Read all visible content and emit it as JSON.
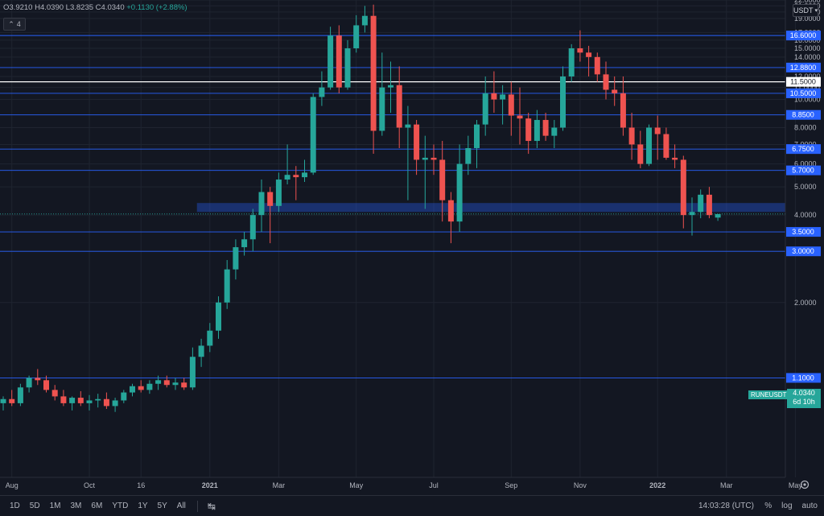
{
  "ohlc": {
    "o_label": "O",
    "o": "3.9210",
    "h_label": "H",
    "h": "4.0390",
    "l_label": "L",
    "l": "3.8235",
    "c_label": "C",
    "c": "4.0340",
    "change": "+0.1130 (+2.88%)"
  },
  "indicator_count": "4",
  "currency": "USDT",
  "symbol_label": "RUNEUSDT",
  "last_price": "4.0340",
  "countdown": "6d 10h",
  "colors": {
    "up": "#26a69a",
    "down": "#ef5350",
    "level": "#2962ff",
    "bg": "#131722",
    "grid": "#1f2430"
  },
  "timeframes": [
    "1D",
    "5D",
    "1M",
    "3M",
    "6M",
    "YTD",
    "1Y",
    "5Y",
    "All"
  ],
  "clock": "14:03:28 (UTC)",
  "right_tools": {
    "percent": "%",
    "log": "log",
    "auto": "auto"
  },
  "chart_data": {
    "type": "candlestick",
    "scale": "log",
    "ylim": [
      0.5,
      22
    ],
    "y_ticks": [
      "2.0000",
      "3.0000",
      "4.0000",
      "5.0000",
      "6.0000",
      "7.0000",
      "8.0000",
      "10.0000",
      "11.0000",
      "12.0000",
      "14.0000",
      "15.0000",
      "16.0000",
      "17.0000",
      "19.0000",
      "20.0000",
      "21.0000",
      "22.0000"
    ],
    "x_ticks": [
      {
        "label": "Aug",
        "i": 1
      },
      {
        "label": "Oct",
        "i": 10
      },
      {
        "label": "16",
        "i": 16
      },
      {
        "label": "2021",
        "i": 24
      },
      {
        "label": "Mar",
        "i": 32
      },
      {
        "label": "May",
        "i": 41
      },
      {
        "label": "Jul",
        "i": 50
      },
      {
        "label": "Sep",
        "i": 59
      },
      {
        "label": "Nov",
        "i": 67
      },
      {
        "label": "2022",
        "i": 76
      },
      {
        "label": "Mar",
        "i": 84
      },
      {
        "label": "May",
        "i": 92
      }
    ],
    "levels": [
      {
        "value": 16.6,
        "label": "16.6000",
        "style": "level"
      },
      {
        "value": 12.88,
        "label": "12.8800",
        "style": "level"
      },
      {
        "value": 11.5,
        "label": "11.5000",
        "style": "white"
      },
      {
        "value": 10.5,
        "label": "10.5000",
        "style": "level"
      },
      {
        "value": 8.85,
        "label": "8.8500",
        "style": "level"
      },
      {
        "value": 6.75,
        "label": "6.7500",
        "style": "level"
      },
      {
        "value": 5.7,
        "label": "5.7000",
        "style": "level"
      },
      {
        "value": 3.5,
        "label": "3.5000",
        "style": "level"
      },
      {
        "value": 3.0,
        "label": "3.0000",
        "style": "level"
      },
      {
        "value": 1.1,
        "label": "1.1000",
        "style": "level"
      }
    ],
    "zone": {
      "from": 4.1,
      "to": 4.4,
      "start_i": 22.5
    },
    "candles": [
      [
        0.9,
        0.95,
        0.85,
        0.93
      ],
      [
        0.93,
        1.0,
        0.88,
        0.9
      ],
      [
        0.9,
        1.05,
        0.88,
        1.02
      ],
      [
        1.02,
        1.12,
        0.98,
        1.1
      ],
      [
        1.1,
        1.18,
        1.04,
        1.08
      ],
      [
        1.08,
        1.12,
        0.98,
        1.0
      ],
      [
        1.0,
        1.04,
        0.92,
        0.95
      ],
      [
        0.95,
        1.0,
        0.88,
        0.9
      ],
      [
        0.9,
        0.95,
        0.85,
        0.94
      ],
      [
        0.94,
        0.99,
        0.88,
        0.9
      ],
      [
        0.9,
        0.96,
        0.85,
        0.92
      ],
      [
        0.92,
        0.97,
        0.87,
        0.93
      ],
      [
        0.93,
        0.98,
        0.86,
        0.88
      ],
      [
        0.88,
        0.94,
        0.84,
        0.92
      ],
      [
        0.92,
        1.0,
        0.9,
        0.98
      ],
      [
        0.98,
        1.05,
        0.95,
        1.03
      ],
      [
        1.03,
        1.08,
        0.98,
        1.0
      ],
      [
        1.0,
        1.08,
        0.97,
        1.05
      ],
      [
        1.05,
        1.12,
        1.0,
        1.08
      ],
      [
        1.08,
        1.12,
        1.02,
        1.04
      ],
      [
        1.04,
        1.1,
        1.0,
        1.06
      ],
      [
        1.06,
        1.1,
        1.0,
        1.02
      ],
      [
        1.02,
        1.4,
        1.0,
        1.3
      ],
      [
        1.3,
        1.5,
        1.2,
        1.42
      ],
      [
        1.42,
        1.7,
        1.35,
        1.6
      ],
      [
        1.6,
        2.1,
        1.5,
        2.0
      ],
      [
        2.0,
        2.8,
        1.9,
        2.6
      ],
      [
        2.6,
        3.3,
        2.4,
        3.1
      ],
      [
        3.1,
        3.5,
        2.9,
        3.3
      ],
      [
        3.3,
        4.2,
        3.0,
        4.0
      ],
      [
        4.0,
        5.3,
        3.5,
        4.8
      ],
      [
        4.8,
        5.0,
        3.2,
        4.3
      ],
      [
        4.3,
        5.6,
        4.1,
        5.3
      ],
      [
        5.3,
        7.0,
        5.1,
        5.5
      ],
      [
        5.5,
        5.9,
        4.5,
        5.4
      ],
      [
        5.4,
        6.2,
        5.2,
        5.6
      ],
      [
        5.6,
        10.5,
        5.5,
        10.2
      ],
      [
        10.2,
        12.5,
        9.5,
        11.0
      ],
      [
        11.0,
        17.8,
        10.8,
        16.6
      ],
      [
        16.6,
        18.0,
        10.5,
        11.0
      ],
      [
        11.0,
        16.0,
        10.8,
        15.0
      ],
      [
        15.0,
        19.5,
        14.5,
        18.0
      ],
      [
        18.0,
        21.0,
        17.0,
        19.4
      ],
      [
        19.4,
        21.2,
        6.5,
        7.8
      ],
      [
        7.8,
        14.5,
        7.5,
        11.0
      ],
      [
        11.0,
        13.5,
        9.0,
        11.2
      ],
      [
        11.2,
        13.0,
        6.8,
        8.0
      ],
      [
        8.0,
        9.5,
        4.5,
        8.2
      ],
      [
        8.2,
        8.5,
        5.5,
        6.2
      ],
      [
        6.2,
        7.5,
        4.2,
        6.3
      ],
      [
        6.3,
        7.0,
        5.5,
        6.2
      ],
      [
        6.2,
        7.2,
        3.8,
        4.5
      ],
      [
        4.5,
        4.8,
        3.2,
        3.8
      ],
      [
        3.8,
        7.0,
        3.5,
        6.0
      ],
      [
        6.0,
        7.5,
        5.5,
        6.8
      ],
      [
        6.8,
        8.5,
        5.8,
        8.2
      ],
      [
        8.2,
        12.0,
        7.5,
        10.5
      ],
      [
        10.5,
        12.5,
        9.0,
        10.0
      ],
      [
        10.0,
        11.2,
        8.2,
        10.4
      ],
      [
        10.4,
        11.5,
        7.5,
        8.8
      ],
      [
        8.8,
        11.0,
        7.0,
        8.6
      ],
      [
        8.6,
        9.0,
        6.5,
        7.2
      ],
      [
        7.2,
        9.2,
        6.8,
        8.5
      ],
      [
        8.5,
        9.0,
        7.2,
        7.5
      ],
      [
        7.5,
        8.5,
        6.8,
        8.0
      ],
      [
        8.0,
        13.0,
        7.8,
        12.0
      ],
      [
        12.0,
        15.5,
        11.5,
        15.0
      ],
      [
        15.0,
        17.3,
        13.5,
        14.5
      ],
      [
        14.5,
        15.3,
        12.0,
        14.0
      ],
      [
        14.0,
        14.5,
        11.5,
        12.2
      ],
      [
        12.2,
        13.5,
        10.0,
        10.8
      ],
      [
        10.8,
        12.0,
        9.5,
        10.5
      ],
      [
        10.5,
        12.0,
        7.5,
        8.0
      ],
      [
        8.0,
        9.0,
        6.2,
        7.0
      ],
      [
        7.0,
        7.8,
        5.8,
        6.0
      ],
      [
        6.0,
        8.2,
        5.9,
        8.0
      ],
      [
        8.0,
        8.8,
        6.2,
        7.6
      ],
      [
        7.6,
        8.0,
        6.2,
        6.3
      ],
      [
        6.3,
        7.0,
        5.8,
        6.2
      ],
      [
        6.2,
        6.4,
        3.6,
        4.0
      ],
      [
        4.0,
        4.6,
        3.4,
        4.1
      ],
      [
        4.1,
        4.9,
        3.9,
        4.7
      ],
      [
        4.7,
        5.0,
        3.9,
        4.0
      ],
      [
        3.92,
        4.04,
        3.82,
        4.03
      ]
    ]
  }
}
